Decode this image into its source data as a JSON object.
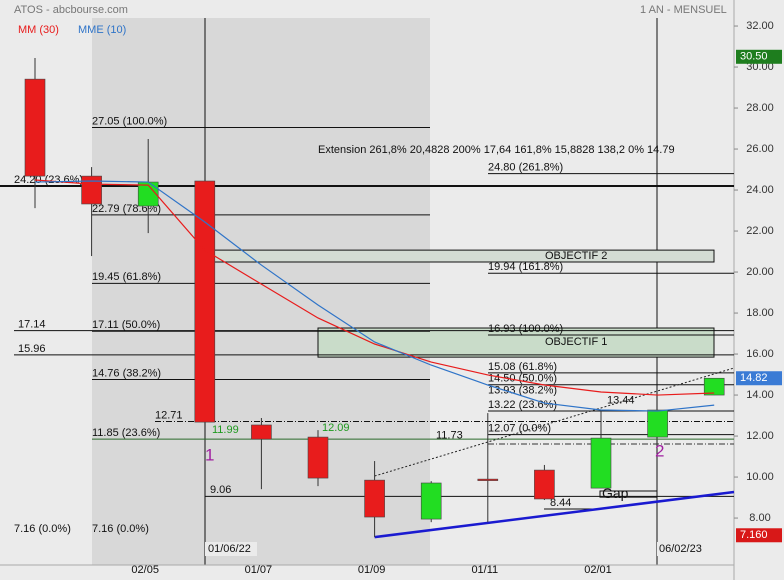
{
  "chart_data": {
    "type": "candlestick",
    "title": "ATOS - abcbourse.com",
    "subtitle": "1 AN - MENSUEL",
    "categories": [
      null,
      null,
      "02/05",
      null,
      "01/07",
      null,
      "01/09",
      null,
      "01/11",
      null,
      "02/01",
      null,
      null
    ],
    "open": [
      29.41,
      24.68,
      23.22,
      24.44,
      12.54,
      11.95,
      9.85,
      7.95,
      9.9,
      10.34,
      9.46,
      11.95,
      14.0
    ],
    "high": [
      30.44,
      25.12,
      26.49,
      24.44,
      12.88,
      12.29,
      10.78,
      9.8,
      13.12,
      10.59,
      13.27,
      13.27,
      14.82
    ],
    "low": [
      23.12,
      20.78,
      21.9,
      12.68,
      9.41,
      9.56,
      7.07,
      7.8,
      7.8,
      8.88,
      9.46,
      11.95,
      14.0
    ],
    "close": [
      24.68,
      23.32,
      24.39,
      12.68,
      11.85,
      9.95,
      8.05,
      9.71,
      9.85,
      8.93,
      11.9,
      13.27,
      14.82
    ],
    "up_color": "#22dd22",
    "down_color": "#e81c1c",
    "series": [
      {
        "name": "MM (30)",
        "color": "#e81c1c",
        "values": [
          24.49,
          24.29,
          24.24,
          21.07,
          19.41,
          17.76,
          16.49,
          15.61,
          14.98,
          14.49,
          14.15,
          14.0,
          14.1
        ]
      },
      {
        "name": "MME (10)",
        "color": "#2f74c8",
        "values": [
          24.39,
          24.44,
          24.39,
          22.44,
          20.34,
          18.39,
          16.59,
          15.46,
          14.49,
          13.61,
          13.27,
          13.22,
          13.51
        ]
      }
    ],
    "ylim": [
      5.71,
      33.27
    ],
    "yticks": [
      {
        "value": 8,
        "label": "8.00"
      },
      {
        "value": 10,
        "label": "10.00"
      },
      {
        "value": 12,
        "label": "12.00"
      },
      {
        "value": 14,
        "label": "14.00"
      },
      {
        "value": 16,
        "label": "16.00"
      },
      {
        "value": 18,
        "label": "18.00"
      },
      {
        "value": 20,
        "label": "20.00"
      },
      {
        "value": 22,
        "label": "22.00"
      },
      {
        "value": 24,
        "label": "24.00"
      },
      {
        "value": 26,
        "label": "26.00"
      },
      {
        "value": 28,
        "label": "28.00"
      },
      {
        "value": 30,
        "label": "30.00"
      },
      {
        "value": 32,
        "label": "32.00"
      }
    ],
    "levels": [
      {
        "label": "27.05 (100.0%)",
        "value": 27.05
      },
      {
        "label": "24.20 (23.6%)",
        "value": 24.2
      },
      {
        "label": "22.79 (78.6%)",
        "value": 22.79
      },
      {
        "label": "19.45 (61.8%)",
        "value": 19.45
      },
      {
        "label": "17.11 (50.0%)",
        "value": 17.11
      },
      {
        "label": "17.14",
        "value": 17.14
      },
      {
        "label": "15.96",
        "value": 15.96
      },
      {
        "label": "14.76 (38.2%)",
        "value": 14.76
      },
      {
        "label": "12.71",
        "value": 12.71
      },
      {
        "label": "11.85 (23.6%)",
        "value": 11.85
      },
      {
        "label": "9.06",
        "value": 9.06
      },
      {
        "label": "7.16 (0.0%)",
        "value": 7.16
      },
      {
        "label": "7.16 (0.0%)",
        "value": 7.16
      },
      {
        "label": "24.80 (261.8%)",
        "value": 24.8
      },
      {
        "label": "19.94 (161.8%)",
        "value": 19.94
      },
      {
        "label": "16.93 (100.0%)",
        "value": 16.93
      },
      {
        "label": "15.08 (61.8%)",
        "value": 15.08
      },
      {
        "label": "14.50 (50.0%)",
        "value": 14.5
      },
      {
        "label": "13.93 (38.2%)",
        "value": 13.93
      },
      {
        "label": "13.22 (23.6%)",
        "value": 13.22
      },
      {
        "label": "12.07 (0.0%)",
        "value": 12.07
      },
      {
        "label": "13.44",
        "value": 13.44
      },
      {
        "label": "11.73",
        "value": 11.73
      },
      {
        "label": "11.99",
        "value": 11.99,
        "color": "#1f9a1f"
      },
      {
        "label": "12.09",
        "value": 12.09,
        "color": "#1f9a1f"
      },
      {
        "label": "8.44",
        "value": 8.44
      }
    ],
    "zones": [
      {
        "label": "OBJECTIF 2",
        "ylim": [
          20.49,
          21.07
        ],
        "color": "#d4dcd4"
      },
      {
        "label": "OBJECTIF 1",
        "ylim": [
          15.85,
          17.27
        ],
        "color": "#c9dcc9"
      },
      {
        "label": "Gap",
        "ylim": [
          9.02,
          9.32
        ],
        "color": "#e6e6e6"
      }
    ],
    "trendlines": [
      {
        "values": [
          7.07,
          9.27
        ],
        "color": "#1a1ad0",
        "style": "solid"
      },
      {
        "values": [
          10.05,
          15.32
        ],
        "color": "#222222",
        "style": "dotted"
      }
    ],
    "annotation": "Extension 261,8% 20,4828 200% 17,64 161,8% 15,8828 138,2 0% 14.79",
    "wave_labels": [
      "1",
      "2"
    ],
    "date_labels": [
      "01/06/22",
      "06/02/23"
    ],
    "price_markers": [
      {
        "value": 30.5,
        "label": "30.50",
        "color": "#1e7d1e"
      },
      {
        "value": 14.82,
        "label": "14.82",
        "color": "#3a7bd5"
      },
      {
        "value": 7.16,
        "label": "7.160",
        "color": "#d81818"
      }
    ]
  }
}
